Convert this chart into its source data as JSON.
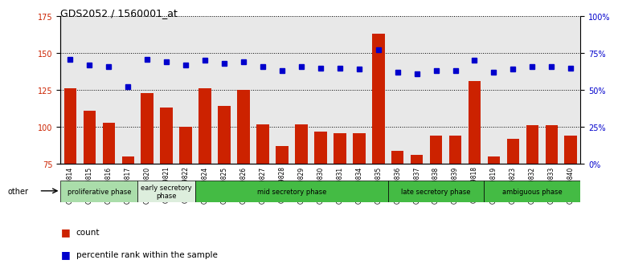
{
  "title": "GDS2052 / 1560001_at",
  "samples": [
    "GSM109814",
    "GSM109815",
    "GSM109816",
    "GSM109817",
    "GSM109820",
    "GSM109821",
    "GSM109822",
    "GSM109824",
    "GSM109825",
    "GSM109826",
    "GSM109827",
    "GSM109828",
    "GSM109829",
    "GSM109830",
    "GSM109831",
    "GSM109834",
    "GSM109835",
    "GSM109836",
    "GSM109837",
    "GSM109838",
    "GSM109839",
    "GSM109818",
    "GSM109819",
    "GSM109823",
    "GSM109832",
    "GSM109833",
    "GSM109840"
  ],
  "counts": [
    126,
    111,
    103,
    80,
    123,
    113,
    100,
    126,
    114,
    125,
    102,
    87,
    102,
    97,
    96,
    96,
    163,
    84,
    81,
    94,
    94,
    131,
    80,
    92,
    101,
    101,
    94
  ],
  "percentiles": [
    71,
    67,
    66,
    52,
    71,
    69,
    67,
    70,
    68,
    69,
    66,
    63,
    66,
    65,
    65,
    64,
    77,
    62,
    61,
    63,
    63,
    70,
    62,
    64,
    66,
    66,
    65
  ],
  "phases": [
    {
      "label": "proliferative phase",
      "start": 0,
      "end": 4,
      "color": "#aaddaa"
    },
    {
      "label": "early secretory\nphase",
      "start": 4,
      "end": 7,
      "color": "#ddeecc"
    },
    {
      "label": "mid secretory phase",
      "start": 7,
      "end": 17,
      "color": "#55cc55"
    },
    {
      "label": "late secretory phase",
      "start": 17,
      "end": 22,
      "color": "#55cc55"
    },
    {
      "label": "ambiguous phase",
      "start": 22,
      "end": 27,
      "color": "#55cc55"
    }
  ],
  "bar_color": "#cc2200",
  "dot_color": "#0000cc",
  "ylim_left": [
    75,
    175
  ],
  "ylim_right": [
    0,
    100
  ],
  "yticks_left": [
    75,
    100,
    125,
    150,
    175
  ],
  "yticks_right": [
    0,
    25,
    50,
    75,
    100
  ],
  "ytick_labels_right": [
    "0%",
    "25%",
    "50%",
    "75%",
    "100%"
  ],
  "bg_color": "#e8e8e8"
}
